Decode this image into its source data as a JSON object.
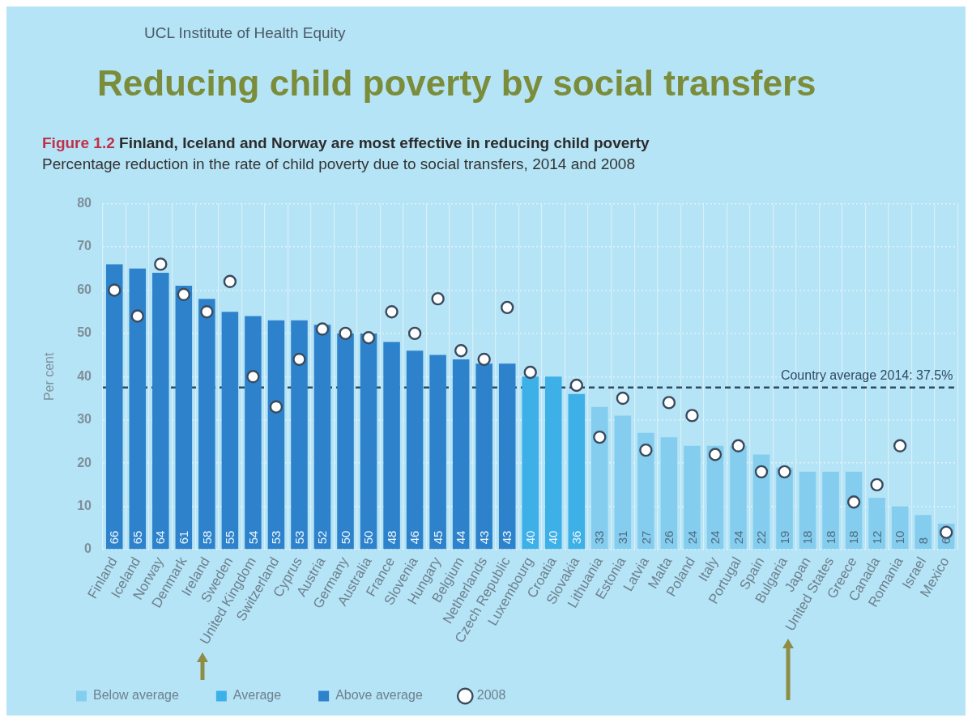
{
  "chart_data": {
    "type": "bar",
    "title": "Reducing child poverty by social transfers",
    "subtitle": "Figure 1.2 Finland, Iceland and Norway are most effective in reducing child poverty",
    "annotations": [
      "UCL Institute of Health Equity",
      "Percentage reduction in the rate of child poverty due to social transfers, 2014 and 2008"
    ],
    "ylabel": "Per cent",
    "categories": [
      "Finland",
      "Iceland",
      "Norway",
      "Denmark",
      "Ireland",
      "Sweden",
      "United Kingdom",
      "Switzerland",
      "Cyprus",
      "Austria",
      "Germany",
      "Australia",
      "France",
      "Slovenia",
      "Hungary",
      "Belgium",
      "Netherlands",
      "Czech Republic",
      "Luxembourg",
      "Croatia",
      "Slovakia",
      "Lithuania",
      "Estonia",
      "Latvia",
      "Malta",
      "Poland",
      "Italy",
      "Portugal",
      "Spain",
      "Bulgaria",
      "Japan",
      "United States",
      "Greece",
      "Canada",
      "Romania",
      "Israel",
      "Mexico"
    ],
    "series": [
      {
        "name": "Below average",
        "color": "#85cdee",
        "values": [
          null,
          null,
          null,
          null,
          null,
          null,
          null,
          null,
          null,
          null,
          null,
          null,
          null,
          null,
          null,
          null,
          null,
          null,
          null,
          null,
          null,
          33,
          31,
          27,
          26,
          24,
          24,
          24,
          22,
          19,
          18,
          18,
          18,
          12,
          10,
          8,
          6
        ],
        "value_labels": [
          null,
          null,
          null,
          null,
          null,
          null,
          null,
          null,
          null,
          null,
          null,
          null,
          null,
          null,
          null,
          null,
          null,
          null,
          null,
          null,
          null,
          "33",
          "31",
          "27",
          "26",
          "24",
          "24",
          "24",
          "22",
          "19",
          "18",
          "18",
          "18",
          "12",
          "10",
          "8",
          "6"
        ]
      },
      {
        "name": "Average",
        "color": "#3db0e8",
        "values": [
          null,
          null,
          null,
          null,
          null,
          null,
          null,
          null,
          null,
          null,
          null,
          null,
          null,
          null,
          null,
          null,
          null,
          null,
          40,
          40,
          36,
          null,
          null,
          null,
          null,
          null,
          null,
          null,
          null,
          null,
          null,
          null,
          null,
          null,
          null,
          null,
          null
        ],
        "value_labels": [
          null,
          null,
          null,
          null,
          null,
          null,
          null,
          null,
          null,
          null,
          null,
          null,
          null,
          null,
          null,
          null,
          null,
          null,
          "40",
          "40",
          "36",
          null,
          null,
          null,
          null,
          null,
          null,
          null,
          null,
          null,
          null,
          null,
          null,
          null,
          null,
          null,
          null
        ]
      },
      {
        "name": "Above average",
        "color": "#2e82cc",
        "values": [
          66,
          65,
          64,
          61,
          58,
          55,
          54,
          53,
          53,
          52,
          50,
          50,
          48,
          46,
          45,
          44,
          43,
          43,
          null,
          null,
          null,
          null,
          null,
          null,
          null,
          null,
          null,
          null,
          null,
          null,
          null,
          null,
          null,
          null,
          null,
          null,
          null
        ],
        "value_labels": [
          "66",
          "65",
          "64",
          "61",
          "58",
          "55",
          "54",
          "53",
          "53",
          "52",
          "50",
          "50",
          "48",
          "46",
          "45",
          "44",
          "43",
          "43",
          null,
          null,
          null,
          null,
          null,
          null,
          null,
          null,
          null,
          null,
          null,
          null,
          null,
          null,
          null,
          null,
          null,
          null,
          null
        ]
      },
      {
        "name": "2008",
        "type": "scatter",
        "color": "#3a4a5c",
        "x": [
          "Finland",
          "Iceland",
          "Norway",
          "Denmark",
          "Ireland",
          "Sweden",
          "United Kingdom",
          "Switzerland",
          "Cyprus",
          "Austria",
          "Germany",
          "Australia",
          "France",
          "Slovenia",
          "Hungary",
          "Belgium",
          "Netherlands",
          "Czech Republic",
          "Luxembourg",
          "Croatia",
          "Slovakia",
          "Lithuania",
          "Estonia",
          "Latvia",
          "Malta",
          "Poland",
          "Italy",
          "Portugal",
          "Spain",
          "Bulgaria",
          "Japan",
          "United States",
          "Greece",
          "Canada",
          "Romania",
          "Israel",
          "Mexico"
        ],
        "values": [
          60,
          54,
          66,
          59,
          55,
          62,
          40,
          33,
          44,
          51,
          50,
          49,
          55,
          50,
          58,
          46,
          44,
          56,
          41,
          null,
          38,
          26,
          35,
          23,
          34,
          31,
          22,
          24,
          18,
          18,
          null,
          null,
          11,
          15,
          24,
          null,
          4
        ]
      }
    ],
    "ylim": [
      0,
      80
    ],
    "yticks": [
      0,
      10,
      20,
      30,
      40,
      50,
      60,
      70,
      80
    ],
    "ref_lines": [
      {
        "axis": "y",
        "value": 37.5,
        "label": "Country average 2014: 37.5%",
        "color": "#2f4a63",
        "line_style": "dashed"
      }
    ],
    "grid": true,
    "legend": "bottom left",
    "marker": "circle"
  }
}
